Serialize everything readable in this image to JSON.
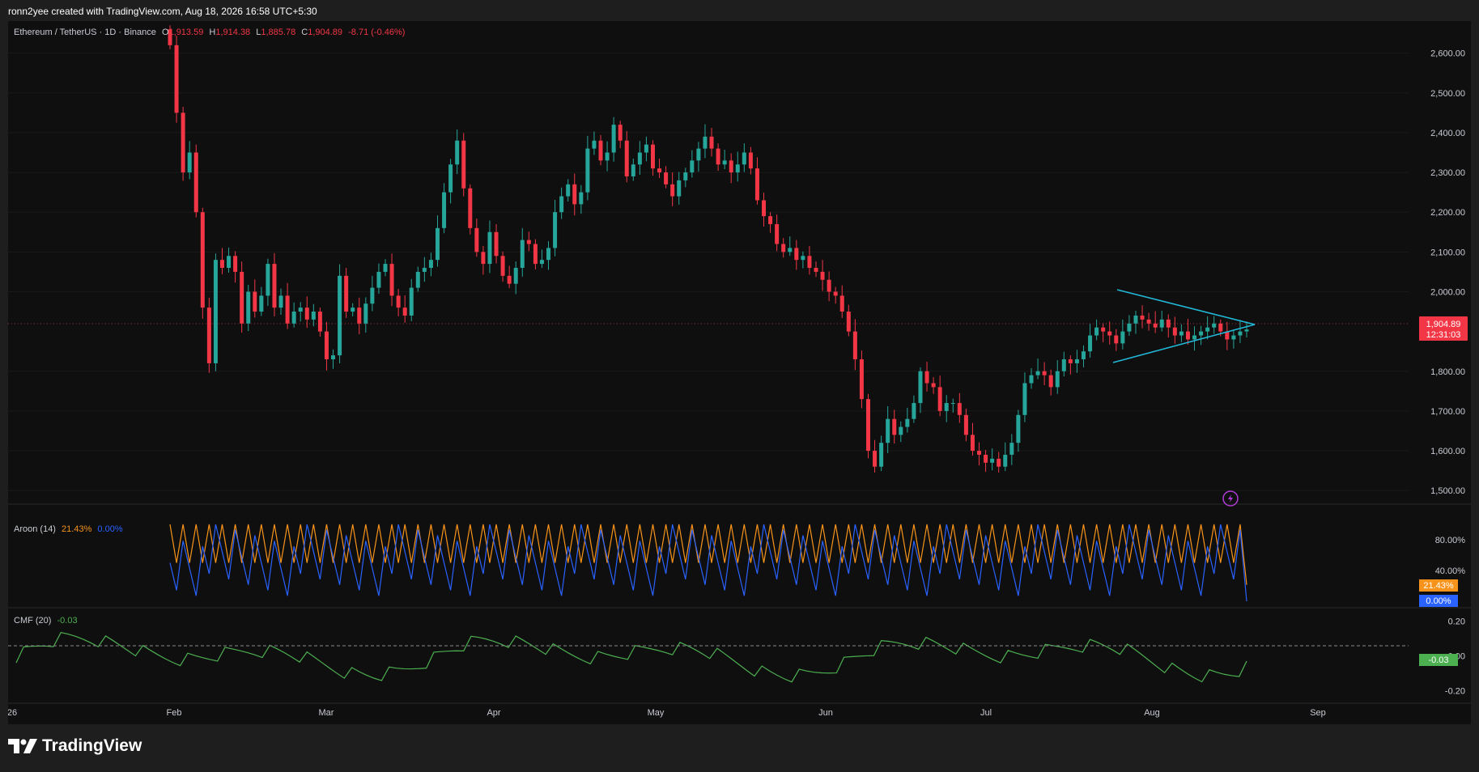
{
  "caption": "ronn2yee created with TradingView.com, Aug 18, 2026 16:58 UTC+5:30",
  "symbol": {
    "name": "Ethereum / TetherUS · 1D · Binance",
    "open_label": "O",
    "open": "1,913.59",
    "high_label": "H",
    "high": "1,914.38",
    "low_label": "L",
    "low": "1,885.78",
    "close_label": "C",
    "close": "1,904.89",
    "change": "-8.71 (-0.46%)"
  },
  "price_tag": {
    "price": "1,904.89",
    "countdown": "12:31:03"
  },
  "aroon": {
    "label": "Aroon (14)",
    "up": "21.43%",
    "down": "0.00%"
  },
  "cmf": {
    "label": "CMF (20)",
    "value": "-0.03"
  },
  "logo": {
    "text": "TradingView"
  },
  "colors": {
    "up": "#26a69a",
    "down": "#f23645",
    "aroon_up": "#f7931a",
    "aroon_down": "#2962ff",
    "cmf": "#4caf50",
    "pattern": "#22b8d8"
  },
  "chart_data": [
    {
      "type": "candlestick",
      "symbol": "ETHUSDT",
      "interval": "1D",
      "x_labels": [
        "26",
        "Feb",
        "Mar",
        "Apr",
        "May",
        "Jun",
        "Jul",
        "Aug",
        "Sep"
      ],
      "y_ticks": [
        "2,600.00",
        "2,500.00",
        "2,400.00",
        "2,300.00",
        "2,200.00",
        "2,100.00",
        "2,000.00",
        "1,800.00",
        "1,700.00",
        "1,600.00",
        "1,500.00"
      ],
      "ylim": [
        1480,
        2640
      ],
      "current_price": 1904.89,
      "close_series_approx": [
        2620,
        2450,
        2300,
        2350,
        2200,
        1960,
        1820,
        2080,
        2060,
        2090,
        2050,
        1920,
        2000,
        1950,
        1990,
        2070,
        1960,
        1990,
        1920,
        1950,
        1960,
        1930,
        1950,
        1900,
        1830,
        1840,
        2040,
        1950,
        1960,
        1920,
        1970,
        2010,
        2050,
        2070,
        1990,
        1960,
        1940,
        2010,
        2050,
        2060,
        2080,
        2160,
        2250,
        2320,
        2380,
        2260,
        2160,
        2100,
        2070,
        2150,
        2090,
        2040,
        2020,
        2060,
        2130,
        2120,
        2070,
        2080,
        2110,
        2200,
        2240,
        2270,
        2220,
        2250,
        2360,
        2380,
        2330,
        2350,
        2420,
        2380,
        2290,
        2320,
        2350,
        2370,
        2310,
        2300,
        2270,
        2240,
        2280,
        2300,
        2330,
        2360,
        2390,
        2360,
        2320,
        2330,
        2300,
        2320,
        2350,
        2310,
        2230,
        2190,
        2170,
        2120,
        2100,
        2110,
        2080,
        2090,
        2060,
        2050,
        2030,
        2000,
        1990,
        1950,
        1900,
        1830,
        1730,
        1600,
        1560,
        1620,
        1680,
        1640,
        1660,
        1680,
        1720,
        1800,
        1770,
        1760,
        1700,
        1720,
        1720,
        1690,
        1640,
        1600,
        1590,
        1570,
        1580,
        1560,
        1590,
        1620,
        1690,
        1770,
        1790,
        1800,
        1790,
        1760,
        1800,
        1830,
        1820,
        1830,
        1850,
        1890,
        1910,
        1900,
        1890,
        1870,
        1900,
        1920,
        1940,
        1930,
        1920,
        1910,
        1930,
        1910,
        1890,
        1900,
        1880,
        1890,
        1900,
        1910,
        1920,
        1900,
        1880,
        1890,
        1900,
        1905
      ]
    },
    {
      "type": "line",
      "title": "Aroon (14)",
      "y_ticks": [
        "80.00%",
        "40.00%"
      ],
      "ylim": [
        0,
        100
      ],
      "series": [
        {
          "name": "Up",
          "last": 21.43
        },
        {
          "name": "Down",
          "last": 0.0
        }
      ]
    },
    {
      "type": "line",
      "title": "CMF (20)",
      "y_ticks": [
        "0.20",
        "0.00",
        "-0.20"
      ],
      "ylim": [
        -0.24,
        0.24
      ],
      "series": [
        {
          "name": "CMF",
          "last": -0.03
        }
      ]
    }
  ]
}
